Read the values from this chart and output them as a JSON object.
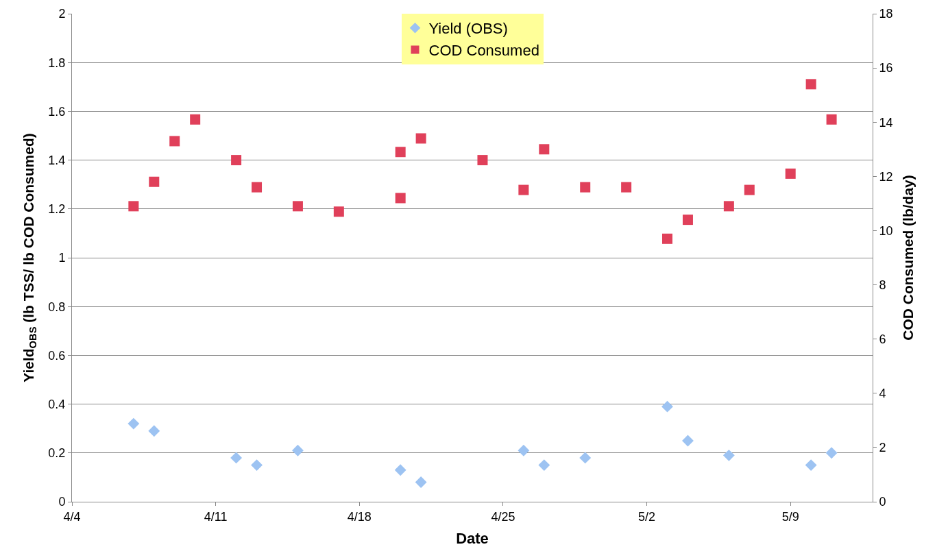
{
  "chart_data": {
    "type": "scatter",
    "xlabel": "Date",
    "ylabel": "Yield$_{OBS}$ (lb TSS/ lb COD Consumed)",
    "y2label": "COD Consumed (lb/day)",
    "xlim": [
      "--04-04",
      "--05-13"
    ],
    "xticks": [
      {
        "value": "--04-04",
        "label": "4/4"
      },
      {
        "value": "--04-11",
        "label": "4/11"
      },
      {
        "value": "--04-18",
        "label": "4/18"
      },
      {
        "value": "--04-25",
        "label": "4/25"
      },
      {
        "value": "--05-02",
        "label": "5/2"
      },
      {
        "value": "--05-09",
        "label": "5/9"
      }
    ],
    "ylim": [
      0,
      2
    ],
    "yticks": [
      0,
      0.2,
      0.4,
      0.6,
      0.8,
      1,
      1.2,
      1.4,
      1.6,
      1.8,
      2
    ],
    "y2lim": [
      0,
      18
    ],
    "y2ticks": [
      0,
      2,
      4,
      6,
      8,
      10,
      12,
      14,
      16,
      18
    ],
    "grid": "y",
    "legend": "top",
    "series": [
      {
        "name": "Yield (OBS)",
        "color": "#9dc3f2",
        "marker": "diamond",
        "x": [
          "--04-07",
          "--04-08",
          "--04-12",
          "--04-13",
          "--04-15",
          "--04-20",
          "--04-21",
          "--04-26",
          "--04-27",
          "--04-29",
          "--05-03",
          "--05-04",
          "--05-06",
          "--05-10",
          "--05-11"
        ],
        "values": [
          0.32,
          0.29,
          0.18,
          0.15,
          0.21,
          0.13,
          0.08,
          0.21,
          0.15,
          0.18,
          0.39,
          0.25,
          0.19,
          0.15,
          0.2
        ]
      },
      {
        "name": "COD Consumed",
        "color": "#e0405a",
        "marker": "square",
        "axis": "y2",
        "x": [
          "--04-07",
          "--04-08",
          "--04-09",
          "--04-10",
          "--04-12",
          "--04-13",
          "--04-15",
          "--04-17",
          "--04-20",
          "--04-20",
          "--04-21",
          "--04-24",
          "--04-26",
          "--04-27",
          "--04-29",
          "--05-01",
          "--05-03",
          "--05-04",
          "--05-06",
          "--05-07",
          "--05-09",
          "--05-10",
          "--05-11"
        ],
        "values": [
          10.9,
          11.8,
          13.3,
          14.1,
          12.6,
          11.6,
          10.9,
          10.7,
          11.2,
          12.9,
          13.4,
          12.6,
          11.5,
          13.0,
          11.6,
          11.6,
          9.7,
          10.4,
          10.9,
          11.5,
          12.1,
          15.4,
          14.1
        ]
      }
    ]
  }
}
